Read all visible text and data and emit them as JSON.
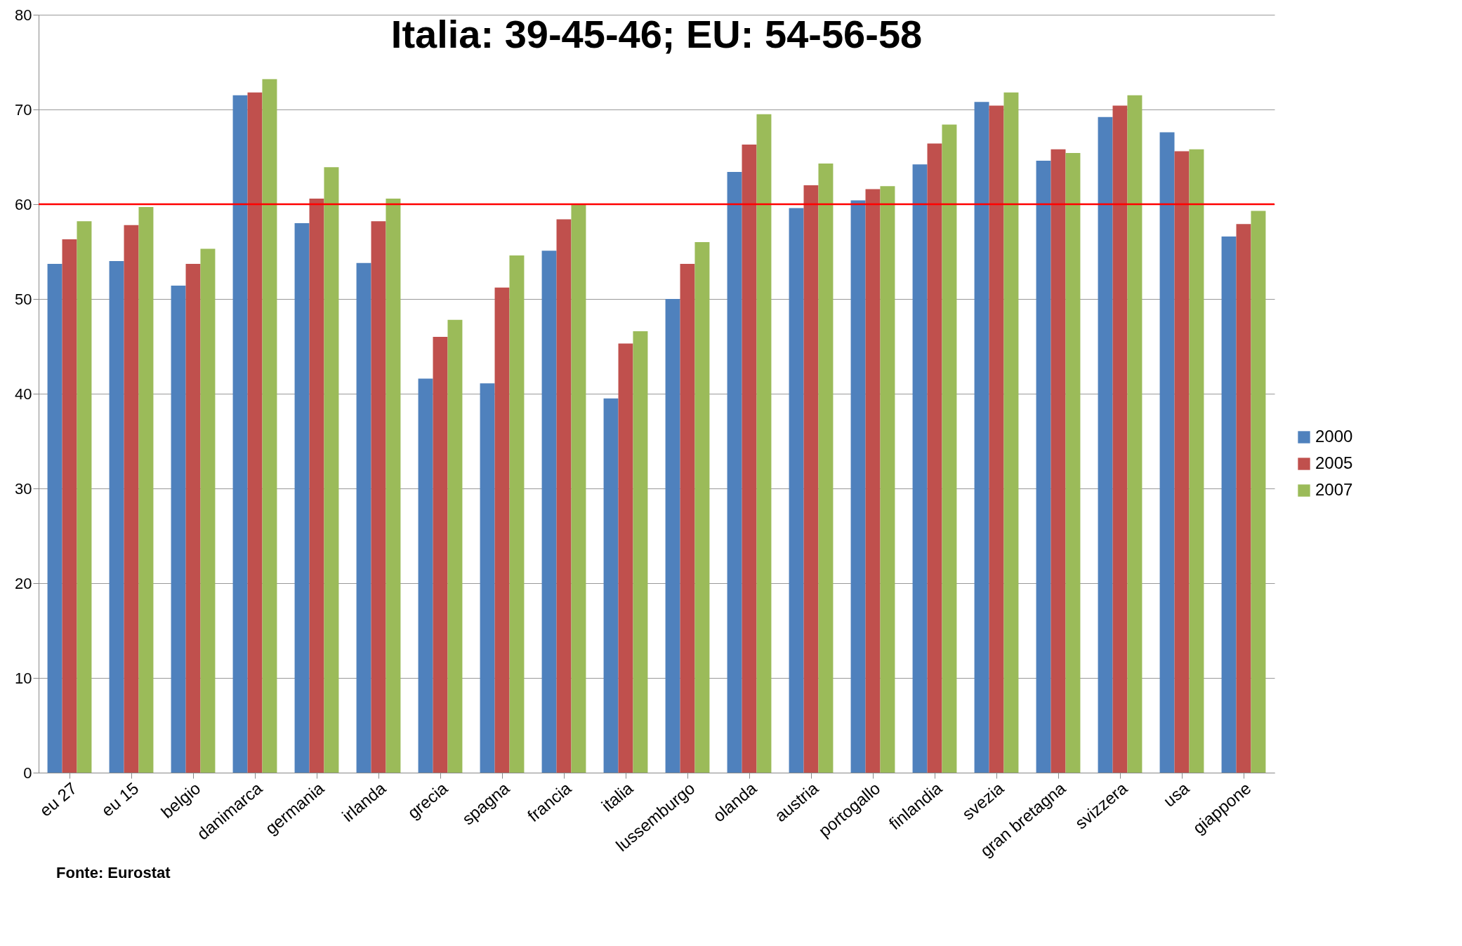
{
  "chart_data": {
    "type": "bar",
    "title": "Italia: 39-45-46; EU: 54-56-58",
    "categories": [
      "eu 27",
      "eu 15",
      "belgio",
      "danimarca",
      "germania",
      "irlanda",
      "grecia",
      "spagna",
      "francia",
      "italia",
      "lussemburgo",
      "olanda",
      "austria",
      "portogallo",
      "finlandia",
      "svezia",
      "gran bretagna",
      "svizzera",
      "usa",
      "giappone"
    ],
    "series": [
      {
        "name": "2000",
        "color": "#4f81bd",
        "values": [
          53.7,
          54.0,
          51.4,
          71.5,
          58.0,
          53.8,
          41.6,
          41.1,
          55.1,
          39.5,
          50.0,
          63.4,
          59.6,
          60.4,
          64.2,
          70.8,
          64.6,
          69.2,
          67.6,
          56.6
        ]
      },
      {
        "name": "2005",
        "color": "#c0504d",
        "values": [
          56.3,
          57.8,
          53.7,
          71.8,
          60.6,
          58.2,
          46.0,
          51.2,
          58.4,
          45.3,
          53.7,
          66.3,
          62.0,
          61.6,
          66.4,
          70.4,
          65.8,
          70.4,
          65.6,
          57.9
        ]
      },
      {
        "name": "2007",
        "color": "#9bbb59",
        "values": [
          58.2,
          59.7,
          55.3,
          73.2,
          63.9,
          60.6,
          47.8,
          54.6,
          60.0,
          46.6,
          56.0,
          69.5,
          64.3,
          61.9,
          68.4,
          71.8,
          65.4,
          71.5,
          65.8,
          59.3
        ]
      }
    ],
    "ylim": [
      0,
      80
    ],
    "yticks": [
      0,
      10,
      20,
      30,
      40,
      50,
      60,
      70,
      80
    ],
    "grid": "y",
    "legend": "right",
    "ref_lines": [
      {
        "axis": "y",
        "value": 60,
        "color": "#ff0000"
      }
    ],
    "annotations": [
      "Fonte: Eurostat"
    ]
  }
}
